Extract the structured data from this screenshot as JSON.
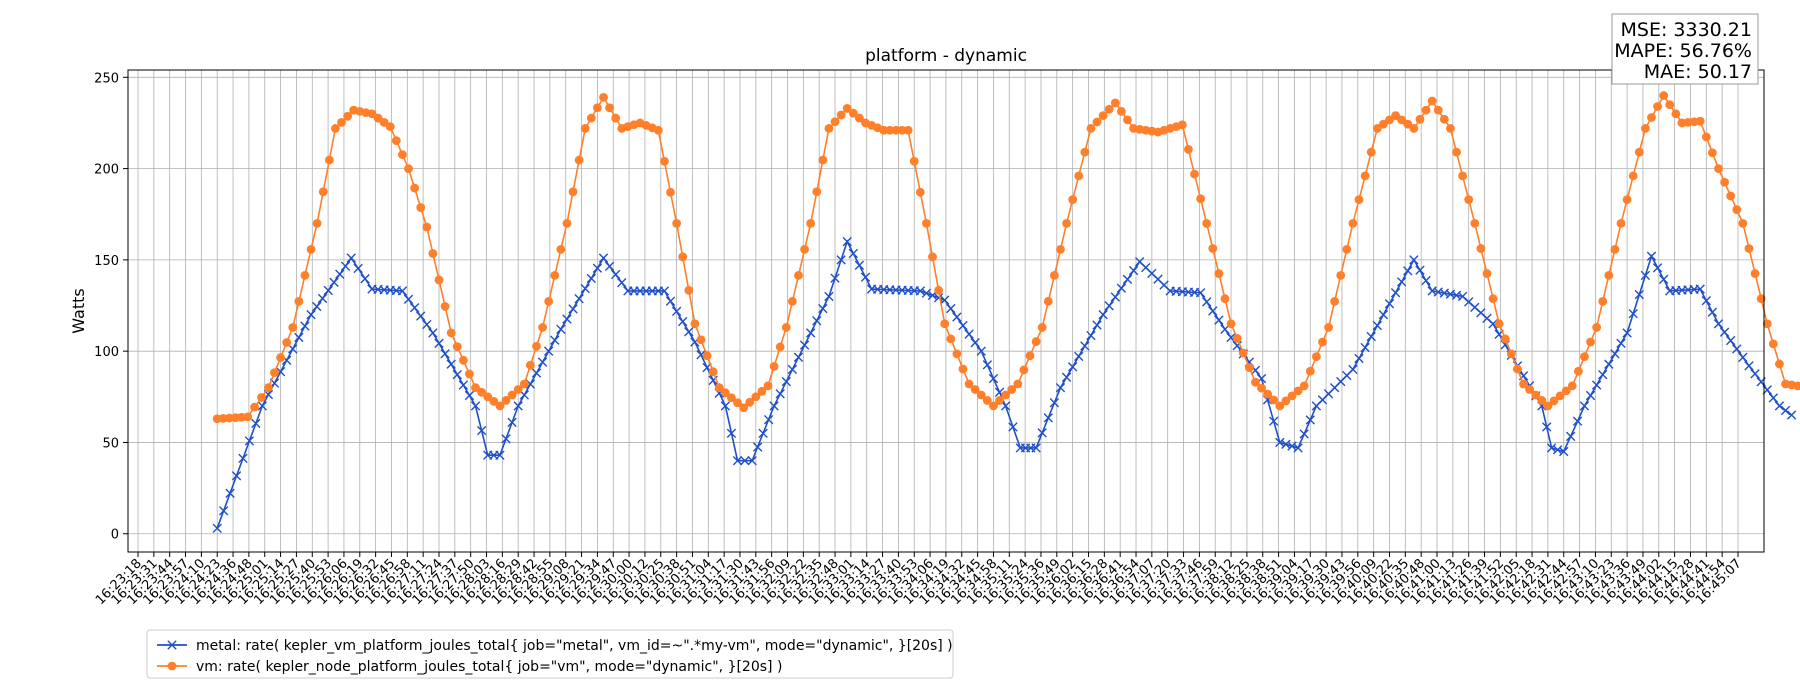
{
  "chart_data": {
    "type": "line",
    "title": "platform - dynamic",
    "xlabel": "",
    "ylabel": "Watts",
    "ylim": [
      -10,
      254
    ],
    "yticks": [
      0,
      50,
      100,
      150,
      200,
      250
    ],
    "grid": true,
    "legend_placement": "bottom-left, below plot",
    "metrics_box": {
      "placement": "top-right",
      "lines": [
        "MSE: 3330.21",
        "MAPE: 56.76%",
        "MAE: 50.17"
      ]
    },
    "x_tick_labels": [
      "16:23:18",
      "16:23:31",
      "16:23:44",
      "16:23:57",
      "16:24:10",
      "16:24:23",
      "16:24:36",
      "16:24:48",
      "16:25:01",
      "16:25:14",
      "16:25:27",
      "16:25:40",
      "16:25:53",
      "16:26:06",
      "16:26:19",
      "16:26:32",
      "16:26:45",
      "16:26:58",
      "16:27:11",
      "16:27:24",
      "16:27:37",
      "16:27:50",
      "16:28:03",
      "16:28:16",
      "16:28:29",
      "16:28:42",
      "16:28:55",
      "16:29:08",
      "16:29:21",
      "16:29:34",
      "16:29:47",
      "16:30:00",
      "16:30:12",
      "16:30:25",
      "16:30:38",
      "16:30:51",
      "16:31:04",
      "16:31:17",
      "16:31:30",
      "16:31:43",
      "16:31:56",
      "16:32:09",
      "16:32:22",
      "16:32:35",
      "16:32:48",
      "16:33:01",
      "16:33:14",
      "16:33:27",
      "16:33:40",
      "16:33:53",
      "16:34:06",
      "16:34:19",
      "16:34:32",
      "16:34:45",
      "16:34:58",
      "16:35:11",
      "16:35:24",
      "16:35:36",
      "16:35:49",
      "16:36:02",
      "16:36:15",
      "16:36:28",
      "16:36:41",
      "16:36:54",
      "16:37:07",
      "16:37:20",
      "16:37:33",
      "16:37:46",
      "16:37:59",
      "16:38:12",
      "16:38:25",
      "16:38:38",
      "16:38:51",
      "16:39:04",
      "16:39:17",
      "16:39:30",
      "16:39:43",
      "16:39:56",
      "16:40:09",
      "16:40:22",
      "16:40:35",
      "16:40:48",
      "16:41:00",
      "16:41:13",
      "16:41:26",
      "16:41:39",
      "16:41:52",
      "16:42:05",
      "16:42:18",
      "16:42:31",
      "16:42:44",
      "16:42:57",
      "16:43:10",
      "16:43:23",
      "16:43:36",
      "16:43:49",
      "16:44:02",
      "16:44:15",
      "16:44:28",
      "16:44:41",
      "16:44:54",
      "16:45:07"
    ],
    "x_range": [
      "16:23:18",
      "16:45:07"
    ],
    "series": [
      {
        "name": "metal: rate( kepler_vm_platform_joules_total{ job=\"metal\", vm_id=~\".*my-vm\", mode=\"dynamic\", }[20s] )",
        "color": "#1f4fc9",
        "marker": "x",
        "points": [
          [
            "16:24:23",
            3
          ],
          [
            "16:25:00",
            70
          ],
          [
            "16:25:40",
            120
          ],
          [
            "16:26:13",
            151
          ],
          [
            "16:26:30",
            134
          ],
          [
            "16:26:55",
            133
          ],
          [
            "16:27:20",
            110
          ],
          [
            "16:27:55",
            70
          ],
          [
            "16:28:05",
            43
          ],
          [
            "16:28:15",
            43
          ],
          [
            "16:28:30",
            70
          ],
          [
            "16:29:05",
            112
          ],
          [
            "16:29:40",
            151
          ],
          [
            "16:30:00",
            133
          ],
          [
            "16:30:30",
            133
          ],
          [
            "16:30:55",
            105
          ],
          [
            "16:31:20",
            70
          ],
          [
            "16:31:30",
            40
          ],
          [
            "16:31:42",
            40
          ],
          [
            "16:32:00",
            70
          ],
          [
            "16:32:45",
            130
          ],
          [
            "16:33:00",
            160
          ],
          [
            "16:33:20",
            134
          ],
          [
            "16:34:00",
            133
          ],
          [
            "16:34:20",
            128
          ],
          [
            "16:34:50",
            100
          ],
          [
            "16:35:10",
            70
          ],
          [
            "16:35:22",
            47
          ],
          [
            "16:35:35",
            47
          ],
          [
            "16:35:55",
            80
          ],
          [
            "16:36:30",
            120
          ],
          [
            "16:37:00",
            149
          ],
          [
            "16:37:25",
            133
          ],
          [
            "16:37:50",
            132
          ],
          [
            "16:38:10",
            112
          ],
          [
            "16:38:40",
            85
          ],
          [
            "16:38:55",
            50
          ],
          [
            "16:39:10",
            47
          ],
          [
            "16:39:25",
            70
          ],
          [
            "16:39:55",
            90
          ],
          [
            "16:40:20",
            120
          ],
          [
            "16:40:45",
            150
          ],
          [
            "16:41:00",
            133
          ],
          [
            "16:41:25",
            130
          ],
          [
            "16:41:50",
            115
          ],
          [
            "16:42:10",
            92
          ],
          [
            "16:42:30",
            70
          ],
          [
            "16:42:38",
            47
          ],
          [
            "16:42:48",
            45
          ],
          [
            "16:43:05",
            70
          ],
          [
            "16:43:40",
            110
          ],
          [
            "16:44:00",
            152
          ],
          [
            "16:44:15",
            133
          ],
          [
            "16:44:40",
            134
          ],
          [
            "16:44:55",
            115
          ],
          [
            "16:45:20",
            92
          ],
          [
            "16:45:45",
            70
          ],
          [
            "16:45:55",
            65
          ]
        ]
      },
      {
        "name": "vm: rate( kepler_node_platform_joules_total{ job=\"vm\", mode=\"dynamic\", }[20s] )",
        "color": "#ff7f2a",
        "marker": "o",
        "points": [
          [
            "16:24:23",
            63
          ],
          [
            "16:24:48",
            64
          ],
          [
            "16:25:05",
            80
          ],
          [
            "16:25:25",
            113
          ],
          [
            "16:25:45",
            170
          ],
          [
            "16:26:00",
            222
          ],
          [
            "16:26:15",
            232
          ],
          [
            "16:26:30",
            230
          ],
          [
            "16:26:45",
            223
          ],
          [
            "16:27:00",
            200
          ],
          [
            "16:27:15",
            168
          ],
          [
            "16:27:35",
            110
          ],
          [
            "16:27:55",
            80
          ],
          [
            "16:28:15",
            70
          ],
          [
            "16:28:35",
            82
          ],
          [
            "16:28:50",
            113
          ],
          [
            "16:29:10",
            170
          ],
          [
            "16:29:25",
            222
          ],
          [
            "16:29:40",
            239
          ],
          [
            "16:29:55",
            222
          ],
          [
            "16:30:10",
            225
          ],
          [
            "16:30:25",
            221
          ],
          [
            "16:30:40",
            170
          ],
          [
            "16:30:55",
            115
          ],
          [
            "16:31:15",
            80
          ],
          [
            "16:31:35",
            69
          ],
          [
            "16:31:55",
            81
          ],
          [
            "16:32:10",
            113
          ],
          [
            "16:32:30",
            170
          ],
          [
            "16:32:45",
            222
          ],
          [
            "16:33:00",
            233
          ],
          [
            "16:33:15",
            225
          ],
          [
            "16:33:30",
            221
          ],
          [
            "16:33:50",
            221
          ],
          [
            "16:34:05",
            170
          ],
          [
            "16:34:20",
            115
          ],
          [
            "16:34:40",
            82
          ],
          [
            "16:35:00",
            70
          ],
          [
            "16:35:20",
            82
          ],
          [
            "16:35:40",
            113
          ],
          [
            "16:36:00",
            170
          ],
          [
            "16:36:20",
            222
          ],
          [
            "16:36:40",
            236
          ],
          [
            "16:36:55",
            222
          ],
          [
            "16:37:15",
            220
          ],
          [
            "16:37:35",
            224
          ],
          [
            "16:37:55",
            170
          ],
          [
            "16:38:15",
            115
          ],
          [
            "16:38:35",
            83
          ],
          [
            "16:38:55",
            70
          ],
          [
            "16:39:15",
            81
          ],
          [
            "16:39:35",
            113
          ],
          [
            "16:39:55",
            170
          ],
          [
            "16:40:15",
            222
          ],
          [
            "16:40:30",
            229
          ],
          [
            "16:40:45",
            222
          ],
          [
            "16:41:00",
            237
          ],
          [
            "16:41:15",
            222
          ],
          [
            "16:41:35",
            170
          ],
          [
            "16:41:55",
            115
          ],
          [
            "16:42:15",
            82
          ],
          [
            "16:42:35",
            70
          ],
          [
            "16:42:55",
            81
          ],
          [
            "16:43:15",
            113
          ],
          [
            "16:43:35",
            170
          ],
          [
            "16:43:55",
            222
          ],
          [
            "16:44:10",
            240
          ],
          [
            "16:44:25",
            225
          ],
          [
            "16:44:40",
            226
          ],
          [
            "16:44:55",
            200
          ],
          [
            "16:45:15",
            170
          ],
          [
            "16:45:35",
            115
          ],
          [
            "16:45:50",
            82
          ],
          [
            "16:46:00",
            81
          ]
        ]
      }
    ]
  }
}
